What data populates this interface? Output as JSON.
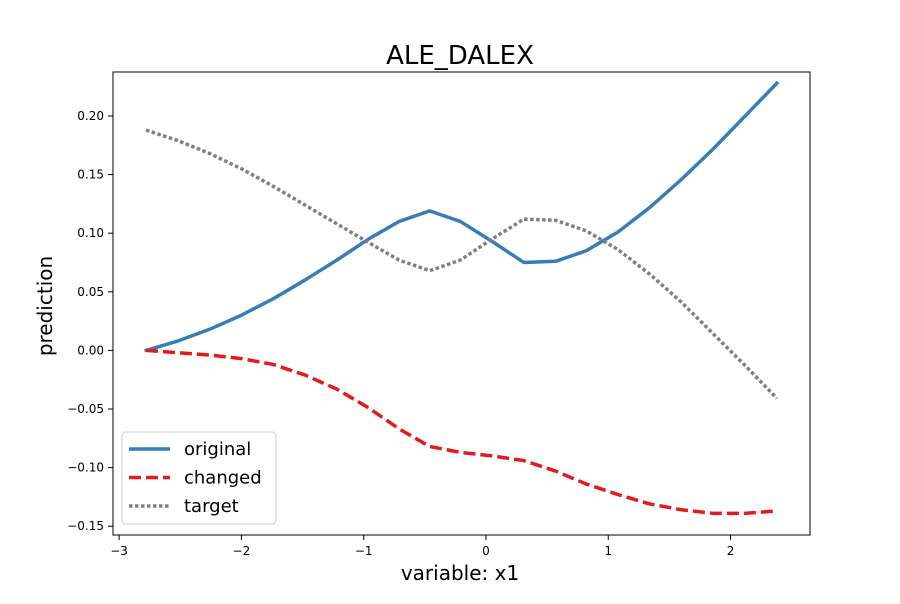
{
  "chart_data": {
    "type": "line",
    "title": "ALE_DALEX",
    "xlabel": "variable: x1",
    "ylabel": "prediction",
    "xlim": [
      -3.05,
      2.65
    ],
    "ylim": [
      -0.1575,
      0.2375
    ],
    "xticks": [
      -3,
      -2,
      -1,
      0,
      1,
      2
    ],
    "xtick_labels": [
      "−3",
      "−2",
      "−1",
      "0",
      "1",
      "2"
    ],
    "yticks": [
      -0.15,
      -0.1,
      -0.05,
      0.0,
      0.05,
      0.1,
      0.15,
      0.2
    ],
    "ytick_labels": [
      "−0.15",
      "−0.10",
      "−0.05",
      "0.00",
      "0.05",
      "0.10",
      "0.15",
      "0.20"
    ],
    "grid": false,
    "legend": {
      "position": "lower-left"
    },
    "x": [
      -2.78,
      -2.52,
      -2.26,
      -2.0,
      -1.74,
      -1.48,
      -1.22,
      -0.96,
      -0.71,
      -0.46,
      -0.21,
      0.05,
      0.31,
      0.57,
      0.82,
      1.08,
      1.34,
      1.6,
      1.86,
      2.12,
      2.38
    ],
    "series": [
      {
        "name": "original",
        "color": "#377eb8",
        "style": "solid",
        "values": [
          0.0,
          0.008,
          0.018,
          0.03,
          0.044,
          0.06,
          0.077,
          0.095,
          0.11,
          0.119,
          0.11,
          0.093,
          0.075,
          0.076,
          0.085,
          0.101,
          0.122,
          0.146,
          0.172,
          0.2,
          0.228
        ]
      },
      {
        "name": "changed",
        "color": "#e41a1c",
        "style": "dashed",
        "values": [
          0.0,
          -0.002,
          -0.004,
          -0.007,
          -0.012,
          -0.021,
          -0.033,
          -0.049,
          -0.067,
          -0.082,
          -0.087,
          -0.09,
          -0.094,
          -0.103,
          -0.114,
          -0.123,
          -0.131,
          -0.136,
          -0.139,
          -0.139,
          -0.137
        ]
      },
      {
        "name": "target",
        "color": "#808080",
        "style": "dotted",
        "values": [
          0.188,
          0.179,
          0.168,
          0.155,
          0.14,
          0.124,
          0.108,
          0.092,
          0.077,
          0.068,
          0.077,
          0.095,
          0.112,
          0.111,
          0.102,
          0.086,
          0.065,
          0.041,
          0.014,
          -0.013,
          -0.041
        ]
      }
    ]
  }
}
